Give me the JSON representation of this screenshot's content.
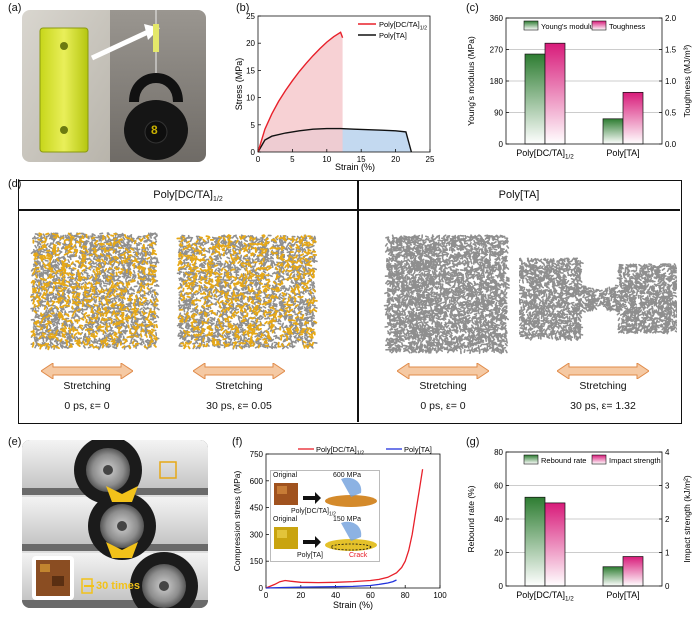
{
  "panel_labels": {
    "a": "(a)",
    "b": "(b)",
    "c": "(c)",
    "d": "(d)",
    "e": "(e)",
    "f": "(f)",
    "g": "(g)"
  },
  "photo_a": {
    "weight_label": "8"
  },
  "panel_d": {
    "header_left": "Poly[DC/TA]",
    "header_left_sub": "1/2",
    "header_right": "Poly[TA]",
    "items": [
      {
        "action": "Stretching",
        "time": "0 ps, ε= 0"
      },
      {
        "action": "Stretching",
        "time": "30 ps, ε= 0.05"
      },
      {
        "action": "Stretching",
        "time": "0 ps, ε= 0"
      },
      {
        "action": "Stretching",
        "time": "30 ps, ε= 1.32"
      }
    ]
  },
  "panel_e": {
    "repeat_label": "30 times"
  },
  "panel_f": {
    "inset": {
      "top_original": "Original",
      "top_pressure": "600 MPa",
      "top_caption": "Poly[DC/TA]",
      "top_caption_sub": "1/2",
      "bottom_original": "Original",
      "bottom_pressure": "150 MPa",
      "bottom_caption": "Poly[TA]",
      "crack": "Crack"
    }
  },
  "colors": {
    "red": "#e8202a",
    "black": "#111111",
    "blue": "#2233dd",
    "green": "#2e7d32",
    "magenta": "#d81b7a",
    "gold": "#e6a817"
  },
  "chart_data": [
    {
      "id": "b",
      "type": "line",
      "title": "",
      "xlabel": "Strain (%)",
      "ylabel": "Stress (MPa)",
      "xlim": [
        0,
        25
      ],
      "ylim": [
        0,
        25
      ],
      "xticks": [
        0,
        5,
        10,
        15,
        20,
        25
      ],
      "yticks": [
        0,
        5,
        10,
        15,
        20,
        25
      ],
      "legend_position": "top-right",
      "series": [
        {
          "name": "Poly[DC/TA]",
          "name_sub": "1/2",
          "color": "#e8202a",
          "x": [
            0,
            1,
            2,
            3,
            4,
            5,
            6,
            7,
            8,
            9,
            10,
            11,
            12,
            12.3
          ],
          "y": [
            0,
            4.2,
            7.0,
            9.3,
            11.3,
            13.1,
            14.8,
            16.3,
            17.7,
            19.0,
            20.2,
            21.2,
            22.0,
            21.0
          ]
        },
        {
          "name": "Poly[TA]",
          "name_sub": "",
          "color": "#111111",
          "x": [
            0,
            1,
            2,
            4,
            6,
            8,
            10,
            12,
            14,
            16,
            18,
            20,
            21.5,
            22.3
          ],
          "y": [
            0,
            2.2,
            2.9,
            3.5,
            3.9,
            4.2,
            4.3,
            4.3,
            4.2,
            4.1,
            4.0,
            3.9,
            3.7,
            0
          ]
        }
      ]
    },
    {
      "id": "c",
      "type": "bar",
      "categories": [
        "Poly[DC/TA]",
        "Poly[TA]"
      ],
      "categories_sub": [
        "1/2",
        ""
      ],
      "ylabel": "Young's modulus (MPa)",
      "y2label": "Toughness (MJ/m³)",
      "ylim": [
        0,
        360
      ],
      "y2lim": [
        0,
        2.0
      ],
      "yticks": [
        0,
        90,
        180,
        270,
        360
      ],
      "y2ticks": [
        0.0,
        0.5,
        1.0,
        1.5,
        2.0
      ],
      "legend_position": "top",
      "series": [
        {
          "name": "Young's modulus",
          "axis": "left",
          "values": [
            257,
            72
          ],
          "color": "#2e7d32"
        },
        {
          "name": "Toughness",
          "axis": "right",
          "values": [
            1.6,
            0.82
          ],
          "color": "#d81b7a"
        }
      ]
    },
    {
      "id": "f",
      "type": "line",
      "xlabel": "Strain (%)",
      "ylabel": "Compression stress (MPa)",
      "xlim": [
        0,
        100
      ],
      "ylim": [
        0,
        750
      ],
      "xticks": [
        0,
        20,
        40,
        60,
        80,
        100
      ],
      "yticks": [
        0,
        150,
        300,
        450,
        600,
        750
      ],
      "legend_position": "top",
      "series": [
        {
          "name": "Poly[DC/TA]",
          "name_sub": "1/2",
          "color": "#e8202a",
          "x": [
            0,
            5,
            8,
            11,
            14,
            20,
            30,
            40,
            50,
            60,
            65,
            70,
            75,
            78,
            80,
            82,
            84,
            86,
            88,
            90
          ],
          "y": [
            0,
            20,
            35,
            42,
            38,
            32,
            30,
            32,
            36,
            42,
            48,
            60,
            85,
            115,
            150,
            210,
            300,
            420,
            540,
            665
          ]
        },
        {
          "name": "Poly[TA]",
          "name_sub": "",
          "color": "#2233dd",
          "x": [
            0,
            10,
            20,
            30,
            40,
            50,
            60,
            65,
            70,
            73,
            75
          ],
          "y": [
            0,
            3,
            5,
            6,
            7,
            9,
            14,
            20,
            28,
            36,
            45
          ]
        }
      ]
    },
    {
      "id": "g",
      "type": "bar",
      "categories": [
        "Poly[DC/TA]",
        "Poly[TA]"
      ],
      "categories_sub": [
        "1/2",
        ""
      ],
      "ylabel": "Rebound rate (%)",
      "y2label": "Impact strength (kJ/m²)",
      "ylim": [
        0,
        80
      ],
      "y2lim": [
        0,
        4
      ],
      "yticks": [
        0,
        20,
        40,
        60,
        80
      ],
      "y2ticks": [
        0,
        1,
        2,
        3,
        4
      ],
      "legend_position": "top",
      "series": [
        {
          "name": "Rebound rate",
          "axis": "left",
          "values": [
            53,
            11.5
          ],
          "color": "#2e7d32"
        },
        {
          "name": "Impact strength",
          "axis": "right",
          "values": [
            2.48,
            0.88
          ],
          "color": "#d81b7a"
        }
      ]
    }
  ]
}
